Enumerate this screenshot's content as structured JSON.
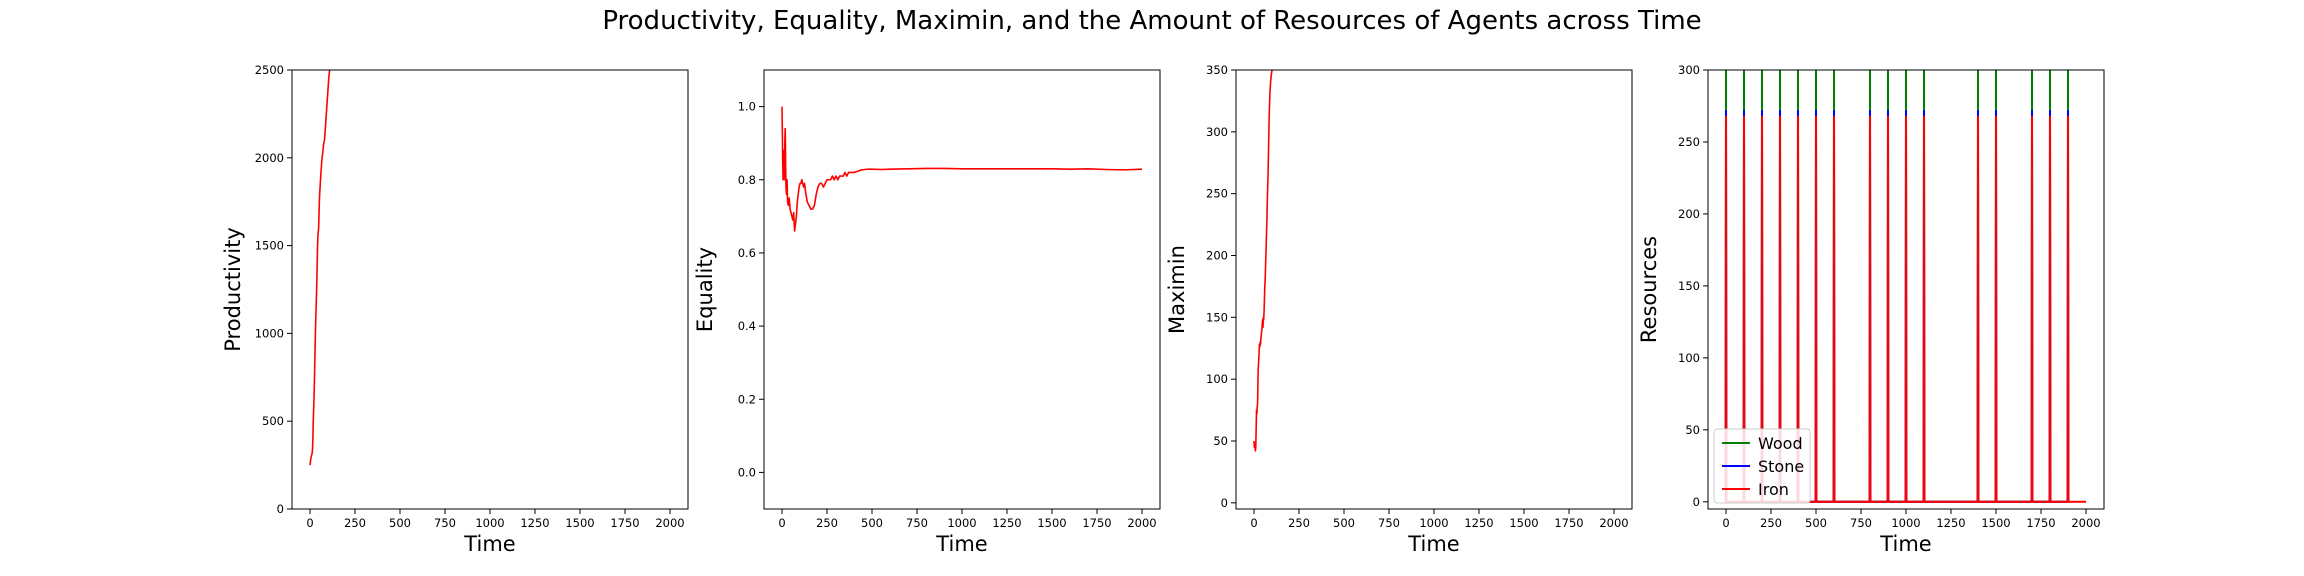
{
  "figure": {
    "title": "Productivity, Equality, Maximin, and the Amount of Resources of Agents across Time"
  },
  "chart_data": [
    {
      "type": "line",
      "title": "",
      "xlabel": "Time",
      "ylabel": "Productivity",
      "xlim": [
        -100,
        2100
      ],
      "ylim": [
        0,
        2500
      ],
      "xticks": [
        0,
        250,
        500,
        750,
        1000,
        1250,
        1500,
        1750,
        2000
      ],
      "yticks": [
        0,
        500,
        1000,
        1500,
        2000,
        2500
      ],
      "series": [
        {
          "color": "#ff0000",
          "x": [
            0,
            5,
            10,
            12,
            14,
            16,
            18,
            20,
            22,
            24,
            26,
            28,
            30,
            32,
            34,
            36,
            38,
            40,
            42,
            44,
            46,
            48,
            50,
            52,
            54,
            56,
            58,
            60,
            62,
            64,
            66,
            68,
            70,
            72,
            74,
            76,
            78,
            80,
            82,
            84,
            86,
            88,
            90,
            92,
            94,
            96,
            98,
            100,
            102,
            104,
            106,
            108,
            110
          ],
          "y": [
            250,
            290,
            310,
            320,
            340,
            400,
            500,
            560,
            620,
            700,
            800,
            900,
            1000,
            1080,
            1150,
            1220,
            1300,
            1400,
            1500,
            1560,
            1580,
            1600,
            1680,
            1750,
            1800,
            1830,
            1870,
            1900,
            1930,
            1960,
            1990,
            2010,
            2020,
            2040,
            2060,
            2080,
            2090,
            2100,
            2120,
            2150,
            2180,
            2210,
            2240,
            2270,
            2300,
            2330,
            2360,
            2390,
            2420,
            2450,
            2470,
            2490,
            2510
          ]
        }
      ]
    },
    {
      "type": "line",
      "title": "",
      "xlabel": "Time",
      "ylabel": "Equality",
      "xlim": [
        -100,
        2100
      ],
      "ylim": [
        -0.1,
        1.1
      ],
      "xticks": [
        0,
        250,
        500,
        750,
        1000,
        1250,
        1500,
        1750,
        2000
      ],
      "yticks": [
        0.0,
        0.2,
        0.4,
        0.6,
        0.8,
        1.0
      ],
      "ytick_labels": [
        "0.0",
        "0.2",
        "0.4",
        "0.6",
        "0.8",
        "1.0"
      ],
      "series": [
        {
          "color": "#ff0000",
          "x": [
            0,
            2,
            4,
            6,
            8,
            10,
            12,
            14,
            16,
            18,
            20,
            22,
            25,
            28,
            31,
            35,
            40,
            45,
            50,
            55,
            60,
            65,
            70,
            75,
            80,
            85,
            90,
            95,
            100,
            105,
            110,
            115,
            120,
            125,
            130,
            140,
            150,
            160,
            170,
            180,
            190,
            200,
            210,
            220,
            230,
            240,
            250,
            260,
            270,
            280,
            290,
            300,
            310,
            320,
            330,
            340,
            350,
            360,
            370,
            380,
            390,
            400,
            420,
            440,
            460,
            480,
            500,
            550,
            600,
            700,
            800,
            900,
            1000,
            1100,
            1200,
            1300,
            1400,
            1500,
            1600,
            1700,
            1800,
            1900,
            2000
          ],
          "y": [
            1.0,
            0.93,
            0.85,
            0.8,
            0.82,
            0.88,
            0.8,
            0.82,
            0.91,
            0.94,
            0.85,
            0.78,
            0.76,
            0.8,
            0.74,
            0.73,
            0.75,
            0.72,
            0.71,
            0.7,
            0.69,
            0.71,
            0.66,
            0.68,
            0.7,
            0.74,
            0.76,
            0.78,
            0.79,
            0.79,
            0.8,
            0.79,
            0.78,
            0.79,
            0.77,
            0.74,
            0.73,
            0.72,
            0.72,
            0.73,
            0.76,
            0.78,
            0.79,
            0.79,
            0.78,
            0.79,
            0.8,
            0.8,
            0.8,
            0.81,
            0.8,
            0.81,
            0.8,
            0.81,
            0.81,
            0.81,
            0.82,
            0.81,
            0.82,
            0.82,
            0.82,
            0.82,
            0.823,
            0.827,
            0.828,
            0.829,
            0.829,
            0.828,
            0.829,
            0.83,
            0.831,
            0.831,
            0.83,
            0.83,
            0.83,
            0.83,
            0.83,
            0.83,
            0.829,
            0.83,
            0.828,
            0.827,
            0.829
          ]
        }
      ]
    },
    {
      "type": "line",
      "title": "",
      "xlabel": "Time",
      "ylabel": "Maximin",
      "xlim": [
        -100,
        2100
      ],
      "ylim": [
        -5,
        350
      ],
      "xticks": [
        0,
        250,
        500,
        750,
        1000,
        1250,
        1500,
        1750,
        2000
      ],
      "yticks": [
        0,
        50,
        100,
        150,
        200,
        250,
        300,
        350
      ],
      "series": [
        {
          "color": "#ff0000",
          "x": [
            0,
            2,
            4,
            6,
            8,
            10,
            12,
            14,
            16,
            18,
            20,
            22,
            24,
            26,
            28,
            30,
            32,
            34,
            36,
            38,
            40,
            42,
            44,
            46,
            48,
            50,
            52,
            54,
            56,
            58,
            60,
            62,
            64,
            66,
            68,
            70,
            72,
            74,
            76,
            78,
            80,
            82,
            84,
            86,
            88,
            90,
            92,
            94,
            96,
            98,
            100
          ],
          "y": [
            50,
            45,
            48,
            44,
            42,
            46,
            60,
            75,
            72,
            78,
            80,
            100,
            110,
            115,
            120,
            128,
            126,
            130,
            128,
            132,
            135,
            138,
            140,
            145,
            148,
            142,
            150,
            148,
            155,
            165,
            175,
            180,
            190,
            200,
            210,
            220,
            230,
            245,
            255,
            265,
            280,
            295,
            310,
            320,
            330,
            335,
            340,
            343,
            346,
            348,
            350
          ]
        }
      ]
    },
    {
      "type": "line",
      "title": "",
      "xlabel": "Time",
      "ylabel": "Resources",
      "xlim": [
        -100,
        2100
      ],
      "ylim": [
        -5,
        300
      ],
      "xticks": [
        0,
        250,
        500,
        750,
        1000,
        1250,
        1500,
        1750,
        2000
      ],
      "yticks": [
        0,
        50,
        100,
        150,
        200,
        250,
        300
      ],
      "legend": "bottom-left",
      "spikes": [
        0,
        100,
        200,
        300,
        400,
        500,
        600,
        800,
        900,
        1000,
        1100,
        1400,
        1500,
        1700,
        1800,
        1900
      ],
      "series": [
        {
          "name": "Wood",
          "color": "#008000",
          "peak": 300,
          "base": 0,
          "end": 1900
        },
        {
          "name": "Stone",
          "color": "#0000ff",
          "peak": 272,
          "base": 0,
          "end": 1900
        },
        {
          "name": "Iron",
          "color": "#ff0000",
          "peak": 268,
          "base": 0,
          "end": 2000
        }
      ]
    }
  ]
}
